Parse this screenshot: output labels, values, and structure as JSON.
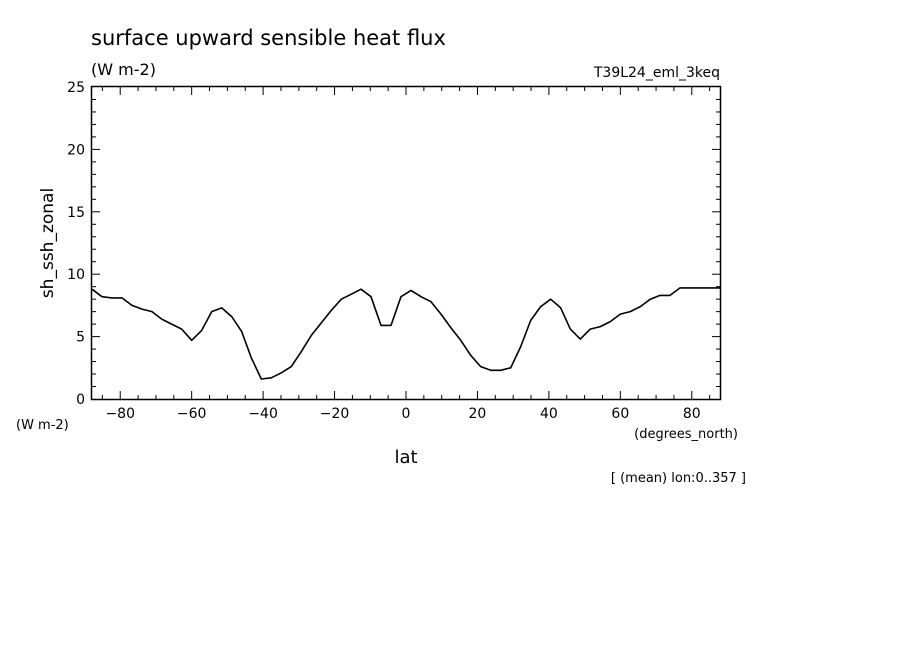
{
  "chart_data": {
    "type": "line",
    "title": "surface upward sensible heat flux",
    "units_label": "(W m-2)",
    "run_label": "T39L24_eml_3keq",
    "ylabel": "sh_ssh_zonal",
    "y_units_label": "(W m-2)",
    "xlabel": "lat",
    "x_units_label": "(degrees_north)",
    "footnote": "[ (mean) lon:0..357 ]",
    "xlim": [
      -87.9,
      87.9
    ],
    "ylim": [
      0,
      25
    ],
    "x_ticks": [
      -80,
      -60,
      -40,
      -20,
      0,
      20,
      40,
      60,
      80
    ],
    "x_tick_labels": [
      "-80",
      "-60",
      "-40",
      "-20",
      "0",
      "20",
      "40",
      "60",
      "80"
    ],
    "y_ticks": [
      0,
      5,
      10,
      15,
      20,
      25
    ],
    "y_tick_labels": [
      "0",
      "5",
      "10",
      "15",
      "20",
      "25"
    ],
    "grid": false,
    "series": [
      {
        "x": [
          -87.9,
          -85.1,
          -82.3,
          -79.5,
          -76.7,
          -73.9,
          -71.1,
          -68.4,
          -65.6,
          -62.8,
          -60.0,
          -57.2,
          -54.4,
          -51.6,
          -48.8,
          -46.0,
          -43.3,
          -40.5,
          -37.7,
          -34.9,
          -32.1,
          -29.3,
          -26.5,
          -23.7,
          -20.9,
          -18.1,
          -15.3,
          -12.6,
          -9.8,
          -7.0,
          -4.2,
          -1.4,
          1.4,
          4.2,
          7.0,
          9.8,
          12.6,
          15.3,
          18.1,
          20.9,
          23.7,
          26.5,
          29.3,
          32.1,
          34.9,
          37.7,
          40.5,
          43.3,
          46.0,
          48.8,
          51.6,
          54.4,
          57.2,
          60.0,
          62.8,
          65.6,
          68.4,
          71.1,
          73.9,
          76.7,
          79.5,
          82.3,
          85.1,
          87.9
        ],
        "y": [
          8.8,
          8.2,
          8.1,
          8.1,
          7.5,
          7.2,
          7.0,
          6.4,
          6.0,
          5.6,
          4.7,
          5.5,
          7.0,
          7.3,
          6.6,
          5.4,
          3.3,
          1.6,
          1.7,
          2.1,
          2.6,
          3.8,
          5.1,
          6.1,
          7.1,
          8.0,
          8.4,
          8.8,
          8.2,
          5.9,
          5.9,
          8.2,
          8.7,
          8.2,
          7.8,
          6.8,
          5.7,
          4.7,
          3.5,
          2.6,
          2.3,
          2.3,
          2.5,
          4.2,
          6.3,
          7.4,
          8.0,
          7.3,
          5.6,
          4.8,
          5.6,
          5.8,
          6.2,
          6.8,
          7.0,
          7.4,
          8.0,
          8.3,
          8.3,
          8.9,
          8.9,
          8.9,
          8.9,
          8.9
        ],
        "color": "#000000"
      }
    ]
  }
}
